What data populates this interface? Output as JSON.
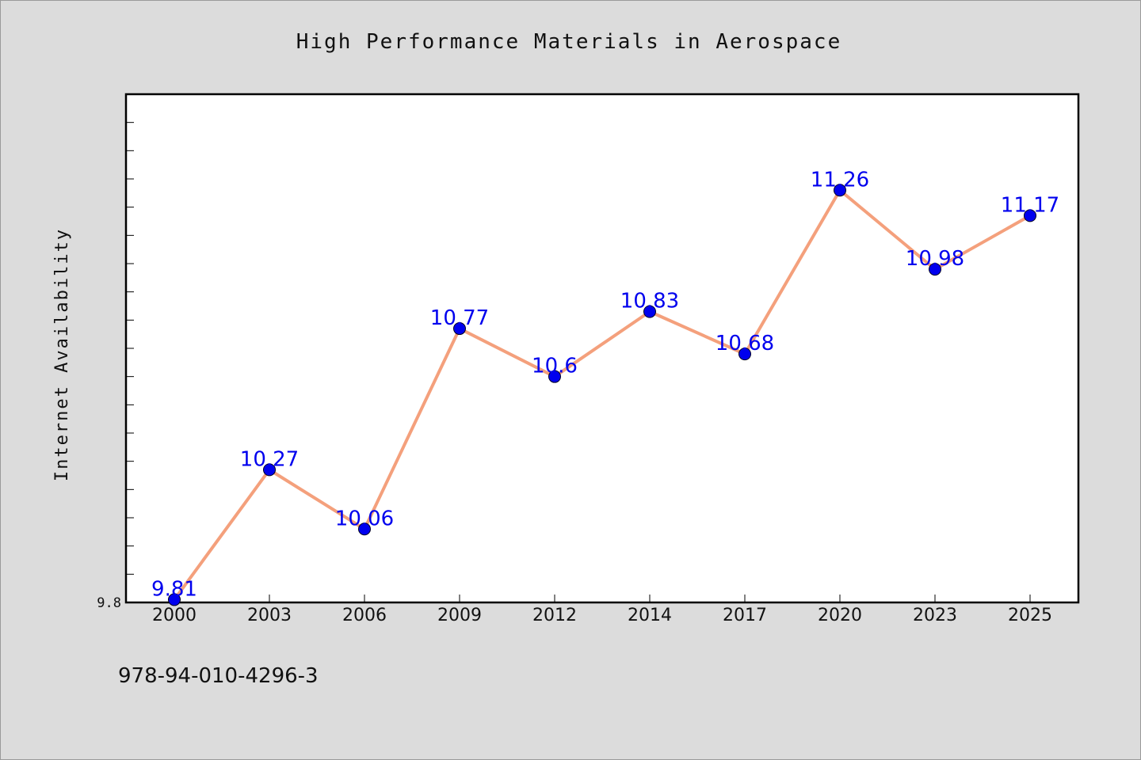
{
  "chart_data": {
    "type": "line",
    "title": "High Performance Materials in Aerospace",
    "xlabel": "",
    "ylabel": "Internet Availability",
    "categories": [
      "2000",
      "2003",
      "2006",
      "2009",
      "2012",
      "2014",
      "2017",
      "2020",
      "2023",
      "2025"
    ],
    "series": [
      {
        "values": [
          9.81,
          10.27,
          10.06,
          10.77,
          10.6,
          10.83,
          10.68,
          11.26,
          10.98,
          11.17
        ],
        "data_labels": [
          "9.81",
          "10.27",
          "10.06",
          "10.77",
          "10.6",
          "10.83",
          "10.68",
          "11.26",
          "10.98",
          "11.17"
        ],
        "line_color": "#f4a07c",
        "marker_color": "#0000ee"
      }
    ],
    "ylim": [
      9.8,
      11.6
    ],
    "y_tick_labels": [
      "9.8"
    ],
    "grid": false,
    "legend": "none"
  },
  "footer_text": "978-94-010-4296-3",
  "colors": {
    "background": "#dcdcdc",
    "plot_area": "#ffffff",
    "line": "#f4a07c",
    "markers": "#0000ee",
    "data_labels": "#0000ee"
  }
}
